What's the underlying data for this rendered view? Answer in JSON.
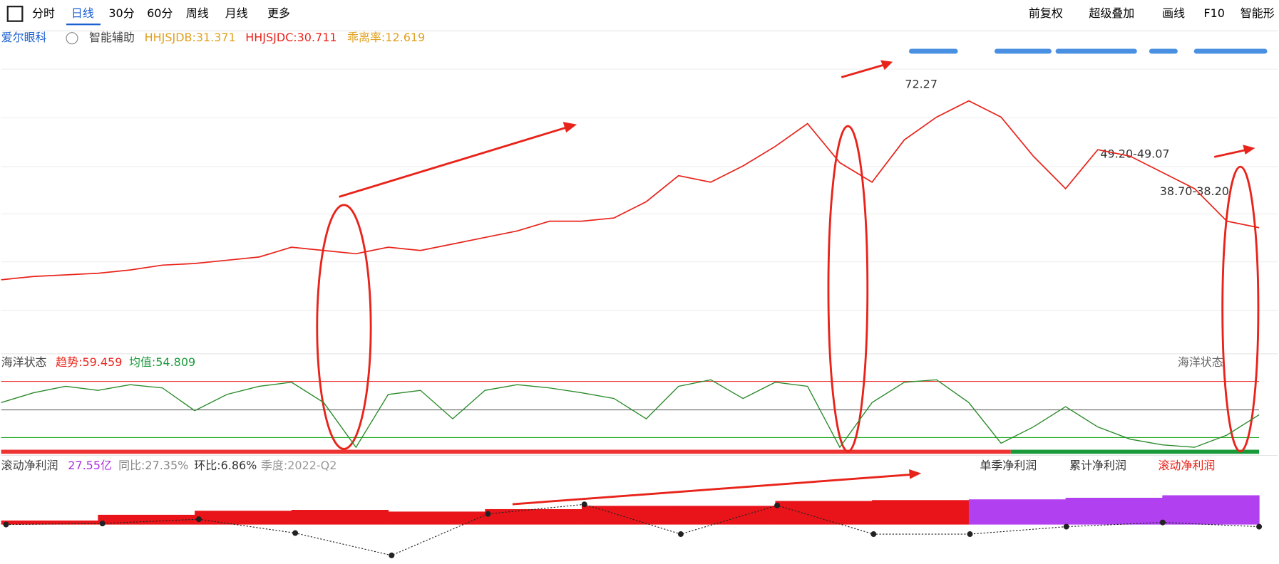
{
  "toolbar": {
    "tabs": [
      "分时",
      "日线",
      "30分",
      "60分",
      "周线",
      "月线",
      "更多"
    ],
    "right": [
      "前复权",
      "超级叠加",
      "画线",
      "F10",
      "智能形"
    ]
  },
  "main": {
    "stock": "爱尔眼科",
    "assist": "智能辅助",
    "hhjsjdb": "HHJSJDB:31.371",
    "hhjsjdc": "HHJSJDC:30.711",
    "bias": "乖离率:12.619",
    "price_labels": [
      "72.27",
      "49.20-49.07",
      "38.70-38.20"
    ],
    "ylim": [
      -2,
      88
    ],
    "price": [
      12,
      13,
      13.5,
      14,
      15,
      16.5,
      17,
      18,
      19,
      22,
      21,
      20,
      22,
      21,
      23,
      25,
      27,
      30,
      30,
      31,
      36,
      44,
      42,
      47,
      53,
      60,
      48,
      42,
      55,
      62,
      67,
      62,
      50,
      40,
      52,
      50,
      45,
      40,
      30,
      28
    ]
  },
  "ocean": {
    "title": "海洋状态",
    "trend": "趋势:59.459",
    "mean": "均值:54.809",
    "right_title": "海洋状态",
    "ylim": [
      0,
      100
    ],
    "values": [
      60,
      72,
      80,
      75,
      82,
      78,
      50,
      70,
      80,
      85,
      60,
      5,
      70,
      75,
      40,
      75,
      82,
      78,
      72,
      65,
      40,
      80,
      88,
      65,
      85,
      80,
      5,
      60,
      85,
      88,
      60,
      10,
      30,
      55,
      30,
      15,
      8,
      5,
      20,
      45
    ]
  },
  "profit": {
    "title": "滚动净利润",
    "amount": "27.55亿",
    "yoy": "同比:27.35%",
    "qoq": "环比:6.86%",
    "quarter": "季度:2022-Q2",
    "legend": [
      "单季净利润",
      "累计净利润",
      "滚动净利润"
    ],
    "rolling": [
      3.8,
      9.2,
      13,
      13.8,
      12.2,
      14.5,
      17.6,
      17.6,
      22.2,
      23,
      23.7,
      25.2,
      27.55
    ],
    "single": [
      0,
      1,
      5,
      -8,
      -29,
      10,
      19,
      -9,
      18,
      -9,
      -9,
      -2,
      2,
      -2
    ]
  }
}
